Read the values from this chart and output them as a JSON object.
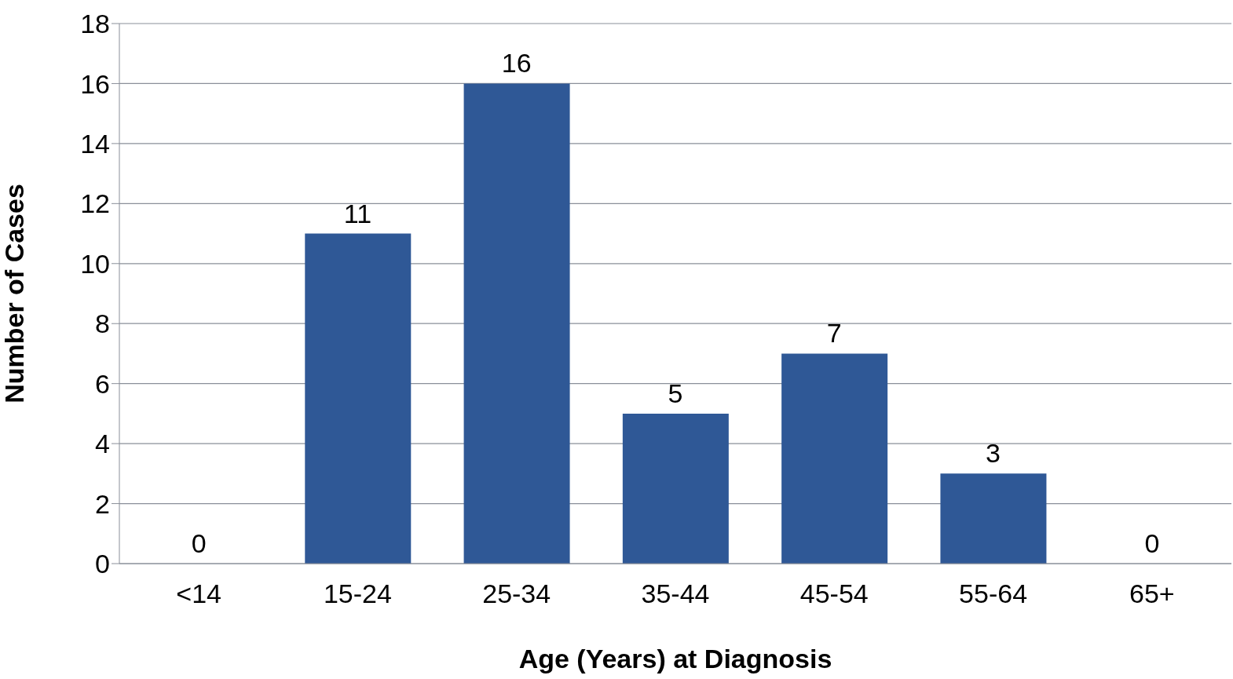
{
  "chart_data": {
    "type": "bar",
    "xlabel": "Age (Years) at Diagnosis",
    "ylabel": "Number of Cases",
    "categories": [
      "<14",
      "15-24",
      "25-34",
      "35-44",
      "45-54",
      "55-64",
      "65+"
    ],
    "values": [
      0,
      11,
      16,
      5,
      7,
      3,
      0
    ],
    "color": "#2f5896",
    "ylim": [
      0,
      18
    ],
    "yticks": [
      0,
      2,
      4,
      6,
      8,
      10,
      12,
      14,
      16,
      18
    ],
    "grid": "y",
    "data_labels": true
  }
}
